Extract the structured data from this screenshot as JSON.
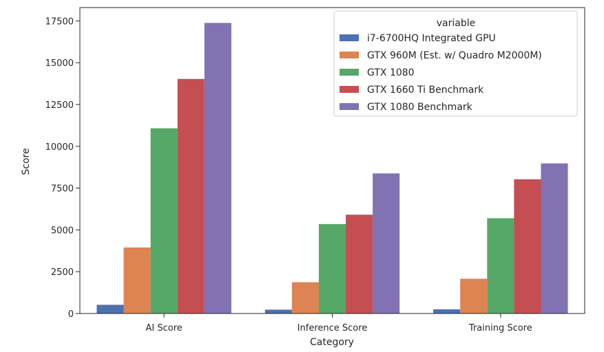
{
  "chart_data": {
    "type": "bar",
    "title": "",
    "xlabel": "Category",
    "ylabel": "Score",
    "ylim": [
      0,
      18300
    ],
    "yticks": [
      0,
      2500,
      5000,
      7500,
      10000,
      12500,
      15000,
      17500
    ],
    "ytick_labels": [
      "0",
      "2500",
      "5000",
      "7500",
      "10000",
      "12500",
      "15000",
      "17500"
    ],
    "categories": [
      "AI Score",
      "Inference Score",
      "Training Score"
    ],
    "legend_title": "variable",
    "legend_position": "top-right",
    "series": [
      {
        "name": "i7-6700HQ Integrated GPU",
        "color": "#4c72b0",
        "values": [
          520,
          230,
          250
        ]
      },
      {
        "name": "GTX 960M (Est. w/ Quadro M2000M)",
        "color": "#dd8452",
        "values": [
          3950,
          1870,
          2080
        ]
      },
      {
        "name": "GTX 1080",
        "color": "#55a868",
        "values": [
          11080,
          5350,
          5700
        ]
      },
      {
        "name": "GTX 1660 Ti Benchmark",
        "color": "#c44e52",
        "values": [
          14030,
          5910,
          8030
        ]
      },
      {
        "name": "GTX 1080 Benchmark",
        "color": "#8172b3",
        "values": [
          17380,
          8380,
          8980
        ]
      }
    ]
  }
}
